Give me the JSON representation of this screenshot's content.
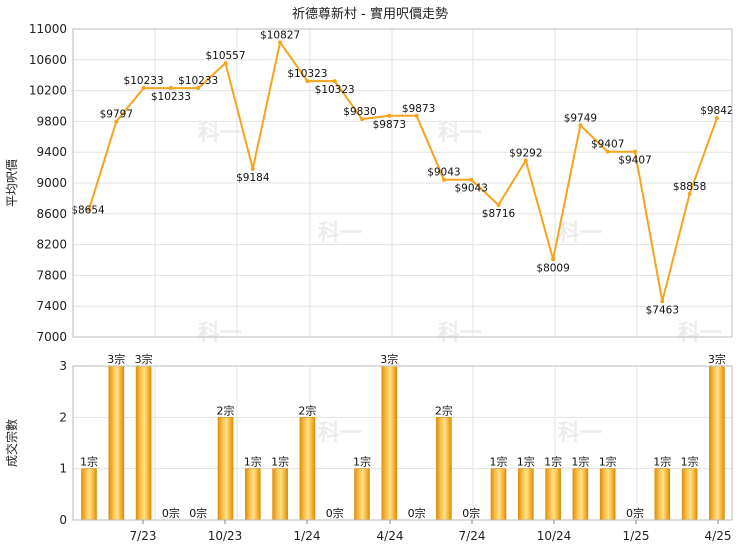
{
  "chart_data": {
    "title": "祈德尊新村 - 實用呎價走勢",
    "watermark": "科一",
    "x_tick_labels": [
      "7/23",
      "10/23",
      "1/24",
      "4/24",
      "7/24",
      "10/24",
      "1/25",
      "4/25"
    ],
    "price_chart": {
      "type": "line",
      "ylabel": "平均呎價",
      "ylim": [
        7000,
        11000
      ],
      "y_ticks": [
        7000,
        7400,
        7800,
        8200,
        8600,
        9000,
        9400,
        9800,
        10200,
        10600,
        11000
      ],
      "series": [
        {
          "values": [
            8654,
            9797,
            10233,
            10233,
            10233,
            10557,
            9184,
            10827,
            10323,
            10323,
            9830,
            9873,
            9873,
            9043,
            9043,
            8716,
            9292,
            8009,
            9749,
            9407,
            9407,
            7463,
            8858,
            9842
          ],
          "labels": [
            "$8654",
            "$9797",
            "$10233",
            "$10233",
            "$10233",
            "$10557",
            "$9184",
            "$10827",
            "$10323",
            "$10323",
            "$9830",
            "$9873",
            "$9873",
            "$9043",
            "$9043",
            "$8716",
            "$9292",
            "$8009",
            "$9749",
            "$9407",
            "$9407",
            "$7463",
            "$8858",
            "$9842"
          ]
        }
      ],
      "color": "#f5a51c"
    },
    "volume_chart": {
      "type": "bar",
      "ylabel": "成交宗數",
      "ylim": [
        0,
        3
      ],
      "y_ticks": [
        0,
        1,
        2,
        3
      ],
      "values": [
        1,
        3,
        3,
        0,
        0,
        2,
        1,
        1,
        2,
        0,
        1,
        3,
        0,
        2,
        0,
        1,
        1,
        1,
        1,
        1,
        0,
        1,
        1,
        3
      ],
      "labels": [
        "1宗",
        "3宗",
        "3宗",
        "0宗",
        "0宗",
        "2宗",
        "1宗",
        "1宗",
        "2宗",
        "0宗",
        "1宗",
        "3宗",
        "0宗",
        "2宗",
        "0宗",
        "1宗",
        "1宗",
        "1宗",
        "1宗",
        "1宗",
        "0宗",
        "1宗",
        "1宗",
        "3宗"
      ],
      "color": "#f5a51c"
    }
  }
}
